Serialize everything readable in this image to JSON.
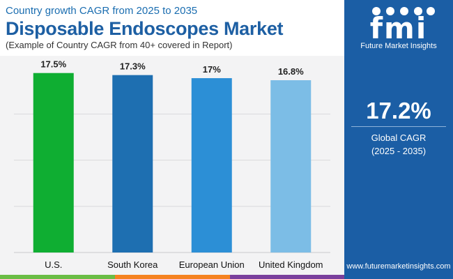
{
  "header": {
    "subtitle": "Country growth CAGR from 2025 to 2035",
    "title": "Disposable Endoscopes Market",
    "note": "(Example of Country CAGR from 40+ covered in Report)"
  },
  "chart_data": {
    "type": "bar",
    "categories": [
      "U.S.",
      "South Korea",
      "European Union",
      "United Kingdom"
    ],
    "values": [
      17.5,
      17.3,
      17.0,
      16.8
    ],
    "data_labels": [
      "17.5%",
      "17.3%",
      "17%",
      "16.8%"
    ],
    "colors": [
      "#0fae32",
      "#1e6fb1",
      "#2c8fd6",
      "#7cbde6"
    ],
    "ylim": [
      0,
      18.5
    ],
    "grid": true,
    "xlabel": "",
    "ylabel": ""
  },
  "sidebar": {
    "logo_text": "fmi",
    "logo_caption": "Future Market Insights",
    "stat_value": "17.2%",
    "stat_label_line1": "Global CAGR",
    "stat_label_line2": "(2025 - 2035)",
    "url": "www.futuremarketinsights.com"
  },
  "colors": {
    "brand_blue": "#1b5ea5",
    "title_blue": "#1d5fa3",
    "bar_green": "#0fae32",
    "bottom_bar": [
      "#6abd45",
      "#f58220",
      "#7a3f9d"
    ]
  }
}
